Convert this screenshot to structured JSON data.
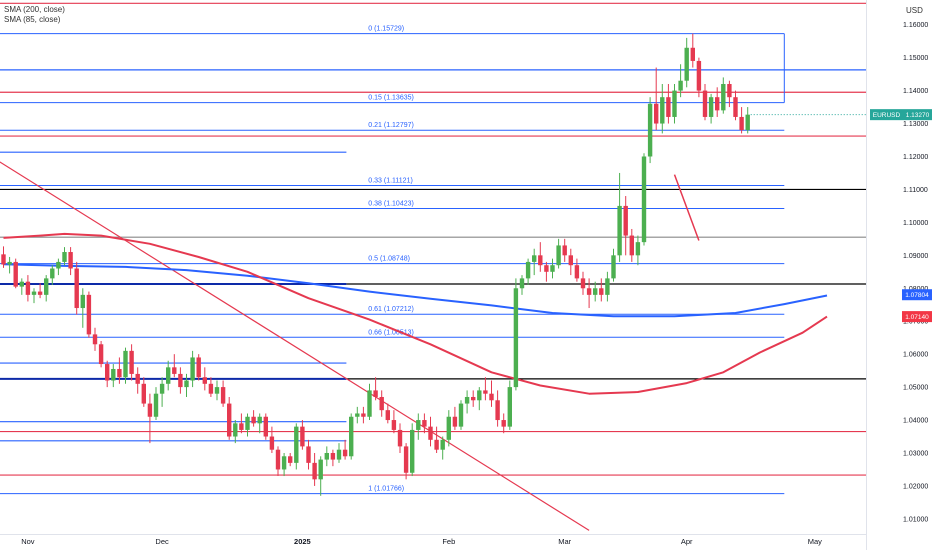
{
  "legend": {
    "sma1": "SMA (200, close)",
    "sma2": "SMA (85, close)"
  },
  "currency": "USD",
  "ticker": {
    "symbol": "EURUSD",
    "price": "1.13270",
    "color": "#26a69a"
  },
  "price_tags": [
    {
      "label": "1.07804",
      "color": "#2962ff",
      "value": 1.07804
    },
    {
      "label": "1.07140",
      "color": "#f23645",
      "value": 1.0714
    }
  ],
  "chart_data": {
    "type": "candlestick",
    "x_ticks": [
      {
        "label": "Nov",
        "i": 4,
        "bold": false
      },
      {
        "label": "Dec",
        "i": 26,
        "bold": false
      },
      {
        "label": "2025",
        "i": 49,
        "bold": true
      },
      {
        "label": "Feb",
        "i": 73,
        "bold": false
      },
      {
        "label": "Mar",
        "i": 92,
        "bold": false
      },
      {
        "label": "Apr",
        "i": 112,
        "bold": false
      },
      {
        "label": "May",
        "i": 133,
        "bold": false
      }
    ],
    "y_ticks": [
      "1.16000",
      "1.15000",
      "1.14000",
      "1.13000",
      "1.12000",
      "1.11000",
      "1.10000",
      "1.09000",
      "1.08000",
      "1.07000",
      "1.06000",
      "1.05000",
      "1.04000",
      "1.03000",
      "1.02000",
      "1.01000"
    ],
    "ylim": [
      1.0045,
      1.1675
    ],
    "fib_levels": [
      {
        "label": "0 (1.15729)",
        "value": 1.15729
      },
      {
        "label": "0.15 (1.13635)",
        "value": 1.13635
      },
      {
        "label": "0.21 (1.12797)",
        "value": 1.12797
      },
      {
        "label": "0.33 (1.11121)",
        "value": 1.11121
      },
      {
        "label": "0.38 (1.10423)",
        "value": 1.10423
      },
      {
        "label": "0.5 (1.08748)",
        "value": 1.08748
      },
      {
        "label": "0.61 (1.07212)",
        "value": 1.07212
      },
      {
        "label": "0.66 (1.06513)",
        "value": 1.06513
      },
      {
        "label": "1 (1.01766)",
        "value": 1.01766
      }
    ],
    "h_lines": [
      {
        "value": 1.1665,
        "color": "#e53950",
        "x0": 0,
        "x1": 1
      },
      {
        "value": 1.1463,
        "color": "#2962ff",
        "x0": 0,
        "x1": 1
      },
      {
        "value": 1.1395,
        "color": "#e53950",
        "x0": 0,
        "x1": 1
      },
      {
        "value": 1.1262,
        "color": "#e53950",
        "x0": 0,
        "x1": 1
      },
      {
        "value": 1.1213,
        "color": "#2962ff",
        "x0": 0,
        "x1": 0.4
      },
      {
        "value": 1.11,
        "color": "#000000",
        "x0": 0,
        "x1": 1
      },
      {
        "value": 1.0955,
        "color": "#888888",
        "x0": 0,
        "x1": 1
      },
      {
        "value": 1.0813,
        "color": "#000000",
        "x0": 0.4,
        "x1": 1
      },
      {
        "value": 1.0813,
        "color": "#0d2aa8",
        "x0": 0,
        "x1": 0.4
      },
      {
        "value": 1.0573,
        "color": "#2962ff",
        "x0": 0,
        "x1": 0.4
      },
      {
        "value": 1.0525,
        "color": "#000000",
        "x0": 0,
        "x1": 1
      },
      {
        "value": 1.0525,
        "color": "#0d2aa8",
        "x0": 0,
        "x1": 0.4
      },
      {
        "value": 1.0395,
        "color": "#2962ff",
        "x0": 0,
        "x1": 0.4
      },
      {
        "value": 1.0365,
        "color": "#e53950",
        "x0": 0,
        "x1": 1
      },
      {
        "value": 1.0337,
        "color": "#2962ff",
        "x0": 0,
        "x1": 0.4
      },
      {
        "value": 1.0233,
        "color": "#e53950",
        "x0": 0,
        "x1": 1
      }
    ],
    "trendline": {
      "start": [
        -1,
        1.1188
      ],
      "end": [
        96,
        1.0065
      ],
      "color": "#e53950"
    },
    "sma_200": [
      [
        0,
        1.0873
      ],
      [
        10,
        1.0868
      ],
      [
        20,
        1.0865
      ],
      [
        30,
        1.0855
      ],
      [
        40,
        1.0838
      ],
      [
        50,
        1.0815
      ],
      [
        60,
        1.079
      ],
      [
        70,
        1.0768
      ],
      [
        80,
        1.0748
      ],
      [
        90,
        1.0725
      ],
      [
        100,
        1.0715
      ],
      [
        110,
        1.0715
      ],
      [
        120,
        1.0725
      ],
      [
        128,
        1.0752
      ],
      [
        135,
        1.0778
      ]
    ],
    "sma_85": [
      [
        0,
        1.0953
      ],
      [
        6,
        1.096
      ],
      [
        10,
        1.0965
      ],
      [
        16,
        1.096
      ],
      [
        24,
        1.0935
      ],
      [
        32,
        1.0895
      ],
      [
        40,
        1.085
      ],
      [
        50,
        1.077
      ],
      [
        60,
        1.0705
      ],
      [
        70,
        1.063
      ],
      [
        80,
        1.0545
      ],
      [
        88,
        1.0505
      ],
      [
        96,
        1.048
      ],
      [
        104,
        1.0485
      ],
      [
        112,
        1.0512
      ],
      [
        118,
        1.0545
      ],
      [
        124,
        1.0605
      ],
      [
        131,
        1.0665
      ],
      [
        135,
        1.0714
      ]
    ],
    "extra_red_segment": [
      [
        110,
        1.1145
      ],
      [
        114,
        1.0945
      ]
    ],
    "candles": [
      [
        1.0903,
        1.0927,
        1.0862,
        1.0872
      ],
      [
        1.0872,
        1.0895,
        1.0845,
        1.088
      ],
      [
        1.088,
        1.089,
        1.08,
        1.0805
      ],
      [
        1.0805,
        1.083,
        1.078,
        1.082
      ],
      [
        1.082,
        1.084,
        1.076,
        1.078
      ],
      [
        1.078,
        1.08,
        1.0755,
        1.079
      ],
      [
        1.079,
        1.0815,
        1.077,
        1.078
      ],
      [
        1.078,
        1.084,
        1.076,
        1.083
      ],
      [
        1.083,
        1.087,
        1.081,
        1.086
      ],
      [
        1.086,
        1.089,
        1.084,
        1.088
      ],
      [
        1.088,
        1.0925,
        1.087,
        1.091
      ],
      [
        1.091,
        1.0925,
        1.084,
        1.086
      ],
      [
        1.086,
        1.088,
        1.072,
        1.074
      ],
      [
        1.074,
        1.08,
        1.068,
        1.078
      ],
      [
        1.078,
        1.079,
        1.065,
        1.066
      ],
      [
        1.066,
        1.068,
        1.061,
        1.063
      ],
      [
        1.063,
        1.064,
        1.056,
        1.057
      ],
      [
        1.057,
        1.058,
        1.05,
        1.052
      ],
      [
        1.052,
        1.057,
        1.05,
        1.0555
      ],
      [
        1.0555,
        1.059,
        1.051,
        1.053
      ],
      [
        1.053,
        1.062,
        1.051,
        1.061
      ],
      [
        1.061,
        1.063,
        1.052,
        1.054
      ],
      [
        1.054,
        1.056,
        1.048,
        1.051
      ],
      [
        1.051,
        1.053,
        1.044,
        1.045
      ],
      [
        1.045,
        1.048,
        1.033,
        1.041
      ],
      [
        1.041,
        1.05,
        1.04,
        1.048
      ],
      [
        1.048,
        1.053,
        1.044,
        1.051
      ],
      [
        1.051,
        1.058,
        1.049,
        1.056
      ],
      [
        1.056,
        1.06,
        1.053,
        1.054
      ],
      [
        1.054,
        1.056,
        1.048,
        1.05
      ],
      [
        1.05,
        1.054,
        1.047,
        1.052
      ],
      [
        1.052,
        1.061,
        1.05,
        1.059
      ],
      [
        1.059,
        1.06,
        1.052,
        1.053
      ],
      [
        1.053,
        1.056,
        1.049,
        1.051
      ],
      [
        1.051,
        1.053,
        1.047,
        1.048
      ],
      [
        1.048,
        1.052,
        1.046,
        1.05
      ],
      [
        1.05,
        1.052,
        1.044,
        1.045
      ],
      [
        1.045,
        1.047,
        1.034,
        1.035
      ],
      [
        1.035,
        1.04,
        1.033,
        1.039
      ],
      [
        1.039,
        1.042,
        1.036,
        1.037
      ],
      [
        1.037,
        1.042,
        1.035,
        1.041
      ],
      [
        1.041,
        1.043,
        1.038,
        1.039
      ],
      [
        1.039,
        1.042,
        1.036,
        1.041
      ],
      [
        1.041,
        1.042,
        1.034,
        1.035
      ],
      [
        1.035,
        1.038,
        1.03,
        1.031
      ],
      [
        1.031,
        1.032,
        1.023,
        1.025
      ],
      [
        1.025,
        1.03,
        1.023,
        1.029
      ],
      [
        1.029,
        1.03,
        1.026,
        1.027
      ],
      [
        1.027,
        1.039,
        1.025,
        1.038
      ],
      [
        1.038,
        1.04,
        1.031,
        1.032
      ],
      [
        1.032,
        1.034,
        1.025,
        1.027
      ],
      [
        1.027,
        1.03,
        1.02,
        1.022
      ],
      [
        1.022,
        1.029,
        1.017,
        1.028
      ],
      [
        1.028,
        1.032,
        1.026,
        1.03
      ],
      [
        1.03,
        1.031,
        1.026,
        1.028
      ],
      [
        1.028,
        1.033,
        1.027,
        1.031
      ],
      [
        1.031,
        1.034,
        1.028,
        1.029
      ],
      [
        1.029,
        1.042,
        1.028,
        1.041
      ],
      [
        1.041,
        1.044,
        1.039,
        1.042
      ],
      [
        1.042,
        1.044,
        1.039,
        1.041
      ],
      [
        1.041,
        1.051,
        1.04,
        1.049
      ],
      [
        1.049,
        1.053,
        1.046,
        1.047
      ],
      [
        1.047,
        1.049,
        1.041,
        1.043
      ],
      [
        1.043,
        1.045,
        1.039,
        1.04
      ],
      [
        1.04,
        1.043,
        1.036,
        1.037
      ],
      [
        1.037,
        1.039,
        1.03,
        1.032
      ],
      [
        1.032,
        1.033,
        1.022,
        1.024
      ],
      [
        1.024,
        1.039,
        1.023,
        1.037
      ],
      [
        1.037,
        1.042,
        1.034,
        1.04
      ],
      [
        1.04,
        1.042,
        1.036,
        1.038
      ],
      [
        1.038,
        1.041,
        1.032,
        1.034
      ],
      [
        1.034,
        1.038,
        1.03,
        1.031
      ],
      [
        1.031,
        1.035,
        1.028,
        1.034
      ],
      [
        1.034,
        1.043,
        1.032,
        1.041
      ],
      [
        1.041,
        1.044,
        1.037,
        1.038
      ],
      [
        1.038,
        1.046,
        1.037,
        1.045
      ],
      [
        1.045,
        1.049,
        1.042,
        1.047
      ],
      [
        1.047,
        1.049,
        1.044,
        1.046
      ],
      [
        1.046,
        1.05,
        1.043,
        1.049
      ],
      [
        1.049,
        1.053,
        1.046,
        1.048
      ],
      [
        1.048,
        1.052,
        1.044,
        1.046
      ],
      [
        1.046,
        1.049,
        1.038,
        1.04
      ],
      [
        1.04,
        1.042,
        1.036,
        1.038
      ],
      [
        1.038,
        1.052,
        1.037,
        1.05
      ],
      [
        1.05,
        1.083,
        1.049,
        1.08
      ],
      [
        1.08,
        1.084,
        1.078,
        1.083
      ],
      [
        1.083,
        1.089,
        1.081,
        1.088
      ],
      [
        1.088,
        1.092,
        1.084,
        1.09
      ],
      [
        1.09,
        1.094,
        1.085,
        1.087
      ],
      [
        1.087,
        1.088,
        1.082,
        1.085
      ],
      [
        1.085,
        1.089,
        1.083,
        1.087
      ],
      [
        1.087,
        1.095,
        1.086,
        1.093
      ],
      [
        1.093,
        1.095,
        1.088,
        1.09
      ],
      [
        1.09,
        1.092,
        1.084,
        1.087
      ],
      [
        1.087,
        1.089,
        1.082,
        1.083
      ],
      [
        1.083,
        1.085,
        1.078,
        1.08
      ],
      [
        1.08,
        1.083,
        1.074,
        1.078
      ],
      [
        1.078,
        1.082,
        1.076,
        1.08
      ],
      [
        1.08,
        1.083,
        1.076,
        1.078
      ],
      [
        1.078,
        1.085,
        1.076,
        1.083
      ],
      [
        1.083,
        1.092,
        1.082,
        1.09
      ],
      [
        1.09,
        1.115,
        1.088,
        1.105
      ],
      [
        1.105,
        1.108,
        1.09,
        1.096
      ],
      [
        1.096,
        1.098,
        1.088,
        1.09
      ],
      [
        1.09,
        1.096,
        1.087,
        1.094
      ],
      [
        1.094,
        1.121,
        1.093,
        1.12
      ],
      [
        1.12,
        1.138,
        1.118,
        1.136
      ],
      [
        1.136,
        1.147,
        1.128,
        1.13
      ],
      [
        1.13,
        1.142,
        1.127,
        1.138
      ],
      [
        1.138,
        1.142,
        1.13,
        1.132
      ],
      [
        1.132,
        1.142,
        1.13,
        1.14
      ],
      [
        1.14,
        1.148,
        1.138,
        1.143
      ],
      [
        1.143,
        1.156,
        1.141,
        1.153
      ],
      [
        1.153,
        1.1573,
        1.147,
        1.149
      ],
      [
        1.149,
        1.15,
        1.138,
        1.14
      ],
      [
        1.14,
        1.142,
        1.131,
        1.132
      ],
      [
        1.132,
        1.139,
        1.13,
        1.138
      ],
      [
        1.138,
        1.141,
        1.132,
        1.134
      ],
      [
        1.134,
        1.144,
        1.133,
        1.142
      ],
      [
        1.142,
        1.143,
        1.135,
        1.138
      ],
      [
        1.138,
        1.14,
        1.131,
        1.132
      ],
      [
        1.132,
        1.135,
        1.127,
        1.128
      ],
      [
        1.128,
        1.135,
        1.127,
        1.1327
      ]
    ]
  }
}
